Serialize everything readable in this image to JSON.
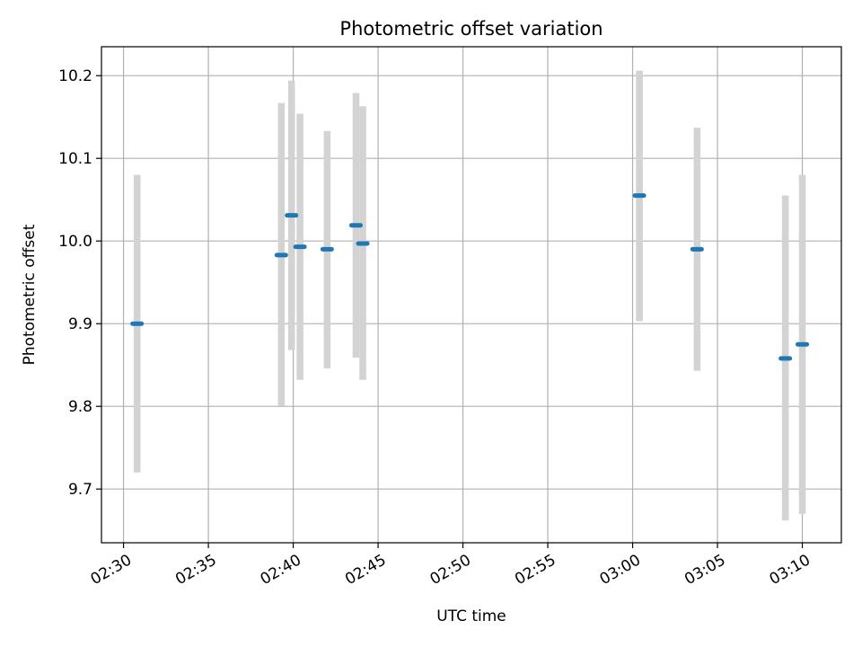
{
  "chart_data": {
    "type": "scatter",
    "title": "Photometric offset variation",
    "xlabel": "UTC time",
    "ylabel": "Photometric offset",
    "x_ticks": [
      "02:30",
      "02:35",
      "02:40",
      "02:45",
      "02:50",
      "02:55",
      "03:00",
      "03:05",
      "03:10"
    ],
    "y_ticks": [
      "9.7",
      "9.8",
      "9.9",
      "10.0",
      "10.1",
      "10.2"
    ],
    "xlim": [
      "02:28:42",
      "03:12:18"
    ],
    "ylim": [
      9.635,
      10.235
    ],
    "grid": true,
    "point_color": "#1f77b4",
    "errorbar_color": "#d3d3d3",
    "points": [
      {
        "start": "02:30:36",
        "end": "02:31:00",
        "y": 9.9,
        "low": 9.72,
        "high": 10.08
      },
      {
        "start": "02:39:06",
        "end": "02:39:30",
        "y": 9.983,
        "low": 9.801,
        "high": 10.167
      },
      {
        "start": "02:39:42",
        "end": "02:40:06",
        "y": 10.031,
        "low": 9.868,
        "high": 10.194
      },
      {
        "start": "02:40:12",
        "end": "02:40:36",
        "y": 9.993,
        "low": 9.832,
        "high": 10.154
      },
      {
        "start": "02:41:48",
        "end": "02:42:12",
        "y": 9.99,
        "low": 9.846,
        "high": 10.133
      },
      {
        "start": "02:43:30",
        "end": "02:43:54",
        "y": 10.019,
        "low": 9.859,
        "high": 10.179
      },
      {
        "start": "02:43:54",
        "end": "02:44:18",
        "y": 9.997,
        "low": 9.832,
        "high": 10.163
      },
      {
        "start": "03:00:12",
        "end": "03:00:36",
        "y": 10.055,
        "low": 9.903,
        "high": 10.206
      },
      {
        "start": "03:03:36",
        "end": "03:04:00",
        "y": 9.99,
        "low": 9.843,
        "high": 10.137
      },
      {
        "start": "03:08:48",
        "end": "03:09:12",
        "y": 9.858,
        "low": 9.662,
        "high": 10.055
      },
      {
        "start": "03:09:48",
        "end": "03:10:12",
        "y": 9.875,
        "low": 9.67,
        "high": 10.08
      }
    ]
  }
}
